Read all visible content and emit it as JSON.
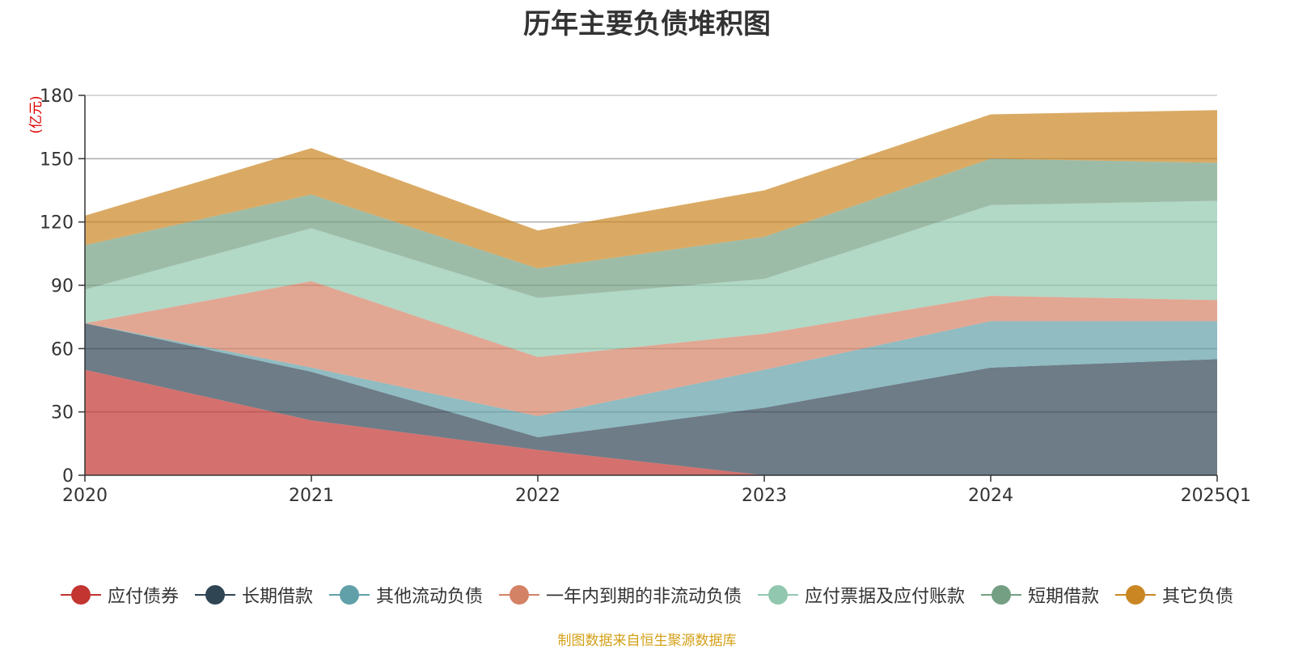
{
  "title": "历年主要负债堆积图",
  "source_note": "制图数据来自恒生聚源数据库",
  "chart_data": {
    "type": "area",
    "stacked": true,
    "title": "历年主要负债堆积图",
    "ylabel": "(亿元)",
    "xlabel": "",
    "categories": [
      "2020",
      "2021",
      "2022",
      "2023",
      "2024",
      "2025Q1"
    ],
    "ylim": [
      0,
      180
    ],
    "yticks": [
      0,
      30,
      60,
      90,
      120,
      150,
      180
    ],
    "grid": true,
    "legend_position": "bottom",
    "series": [
      {
        "name": "应付债券",
        "values": [
          50,
          26,
          12,
          0,
          0,
          0
        ],
        "color": "#c23531"
      },
      {
        "name": "长期借款",
        "values": [
          22,
          23,
          6,
          32,
          51,
          55
        ],
        "color": "#2f4554"
      },
      {
        "name": "其他流动负债",
        "values": [
          0,
          2,
          10,
          18,
          22,
          18
        ],
        "color": "#61a0a8"
      },
      {
        "name": "一年内到期的非流动负债",
        "values": [
          0,
          41,
          28,
          17,
          12,
          10
        ],
        "color": "#d48265"
      },
      {
        "name": "应付票据及应付账款",
        "values": [
          16,
          25,
          28,
          26,
          43,
          47
        ],
        "color": "#91c7ae"
      },
      {
        "name": "短期借款",
        "values": [
          21,
          16,
          14,
          20,
          22,
          18
        ],
        "color": "#749f83"
      },
      {
        "name": "其它负债",
        "values": [
          14,
          22,
          18,
          22,
          21,
          25
        ],
        "color": "#ca8622"
      }
    ]
  }
}
